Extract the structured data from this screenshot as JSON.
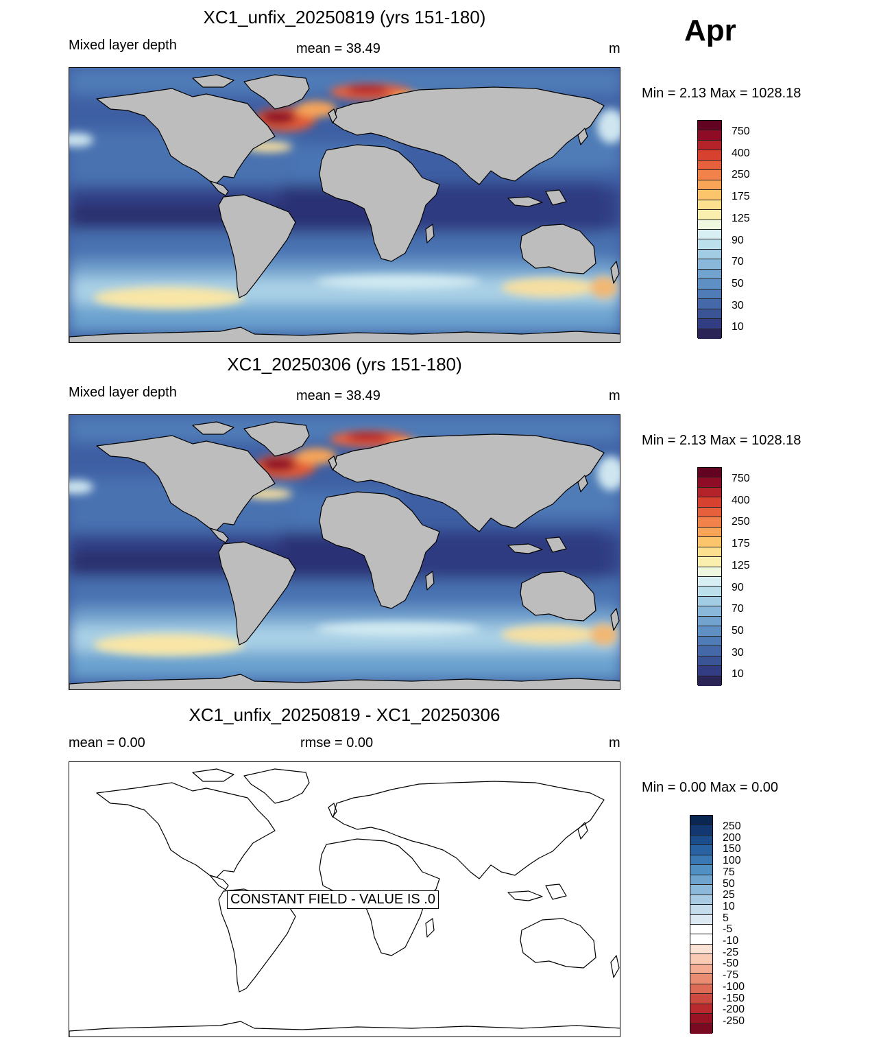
{
  "month": "Apr",
  "panels": [
    {
      "title": "XC1_unfix_20250819 (yrs 151-180)",
      "left_label": "Mixed layer depth",
      "center_label": "mean =  38.49",
      "unit": "m",
      "minmax": "Min =   2.13 Max = 1028.18"
    },
    {
      "title": "XC1_20250306 (yrs 151-180)",
      "left_label": "Mixed layer depth",
      "center_label": "mean =  38.49",
      "unit": "m",
      "minmax": "Min =   2.13 Max = 1028.18"
    },
    {
      "title": "XC1_unfix_20250819 - XC1_20250306",
      "left_label": "mean =   0.00",
      "center_label": "rmse =   0.00",
      "unit": "m",
      "minmax": "Min =   0.00 Max =   0.00",
      "banner": "CONSTANT FIELD - VALUE IS .0"
    }
  ],
  "colorbar_field": {
    "colors": [
      "#2b2456",
      "#323d83",
      "#3b5496",
      "#4468a8",
      "#4f7cb7",
      "#5e90c3",
      "#72a3cf",
      "#89b8da",
      "#a1cce4",
      "#bcdfec",
      "#d7eef3",
      "#eef7e0",
      "#fbefb0",
      "#fde08f",
      "#fcc56c",
      "#f9a558",
      "#f1834a",
      "#e7603c",
      "#d6422f",
      "#b5232a",
      "#8f0c26",
      "#620322"
    ],
    "ticks": [
      "750",
      "400",
      "250",
      "175",
      "125",
      "90",
      "70",
      "50",
      "30",
      "10"
    ]
  },
  "colorbar_diff": {
    "colors": [
      "#7a0a22",
      "#9a1324",
      "#b82a2e",
      "#cc4a40",
      "#dd6b56",
      "#ea8c72",
      "#f4ac92",
      "#f9cbb5",
      "#fde3d5",
      "#ffffff",
      "#ffffff",
      "#dde9f2",
      "#c4dceb",
      "#a8cbe3",
      "#8cb8da",
      "#6ea4ce",
      "#5090c2",
      "#3a79b3",
      "#2862a2",
      "#1b4c8b",
      "#123771",
      "#0a2653"
    ],
    "ticks": [
      "250",
      "200",
      "150",
      "100",
      "75",
      "50",
      "25",
      "10",
      "5",
      "-5",
      "-10",
      "-25",
      "-50",
      "-75",
      "-100",
      "-150",
      "-200",
      "-250"
    ]
  }
}
